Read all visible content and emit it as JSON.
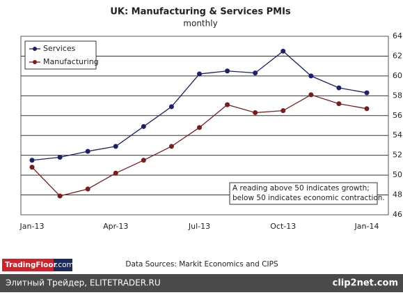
{
  "chart_data": {
    "type": "line",
    "title": "UK: Manufacturing & Services PMIs",
    "subtitle": "monthly",
    "categories": [
      "Jan-13",
      null,
      null,
      "Apr-13",
      null,
      null,
      "Jul-13",
      null,
      null,
      "Oct-13",
      null,
      null,
      "Jan-14"
    ],
    "series": [
      {
        "name": "Services",
        "color": "#1c1f6b",
        "values": [
          51.5,
          51.8,
          52.4,
          52.9,
          54.9,
          56.9,
          60.2,
          60.5,
          60.3,
          62.5,
          60.0,
          58.8,
          58.3
        ]
      },
      {
        "name": "Manufacturing",
        "color": "#7b1c1c",
        "values": [
          50.8,
          47.9,
          48.6,
          50.2,
          51.5,
          52.9,
          54.8,
          57.1,
          56.3,
          56.5,
          58.1,
          57.2,
          56.7
        ]
      }
    ],
    "ylim": [
      46,
      64
    ],
    "yticks": [
      46,
      48,
      50,
      52,
      54,
      56,
      58,
      60,
      62,
      64
    ],
    "grid": true,
    "legend": "upper left",
    "annotation": [
      "A reading above 50 indicates growth;",
      "below 50 indicates economic contraction."
    ]
  },
  "source": "Data Sources: Markit Economics and CIPS",
  "logo": {
    "name": "TradingFloor",
    "suffix": ".com"
  },
  "footer": {
    "caption": "Элитный Трейдер, ELITETRADER.RU",
    "brand": "clip2net.com"
  }
}
